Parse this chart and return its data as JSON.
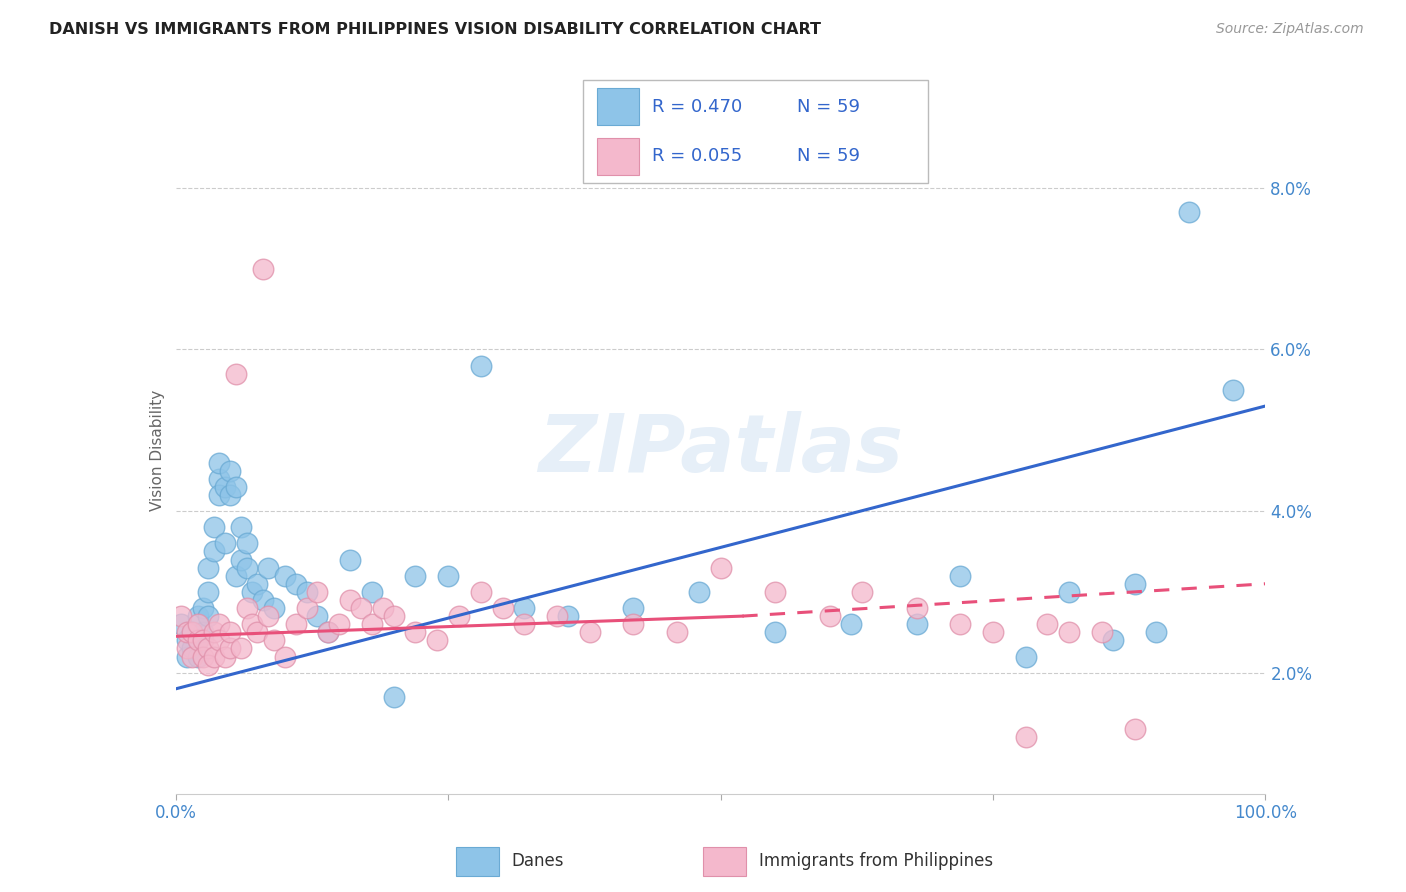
{
  "title": "DANISH VS IMMIGRANTS FROM PHILIPPINES VISION DISABILITY CORRELATION CHART",
  "source": "Source: ZipAtlas.com",
  "ylabel": "Vision Disability",
  "xlim": [
    0,
    1
  ],
  "ylim": [
    0.005,
    0.09
  ],
  "xticks": [
    0,
    0.25,
    0.5,
    0.75,
    1.0
  ],
  "xticklabels": [
    "0.0%",
    "",
    "",
    "",
    "100.0%"
  ],
  "yticks": [
    0.02,
    0.04,
    0.06,
    0.08
  ],
  "yticklabels": [
    "2.0%",
    "4.0%",
    "6.0%",
    "8.0%"
  ],
  "danish_color": "#8ec4e8",
  "danish_edge_color": "#6aaad4",
  "phil_color": "#f4b8cc",
  "phil_edge_color": "#e090aa",
  "blue_line_color": "#3366cc",
  "pink_line_color": "#e8507a",
  "watermark": "ZIPatlas",
  "legend_R_blue": "R = 0.470",
  "legend_N_blue": "N = 59",
  "legend_R_pink": "R = 0.055",
  "legend_N_pink": "N = 59",
  "blue_legend_label": "Danes",
  "pink_legend_label": "Immigrants from Philippines",
  "danes_x": [
    0.005,
    0.01,
    0.01,
    0.015,
    0.015,
    0.02,
    0.02,
    0.02,
    0.025,
    0.025,
    0.03,
    0.03,
    0.03,
    0.035,
    0.035,
    0.04,
    0.04,
    0.04,
    0.045,
    0.045,
    0.05,
    0.05,
    0.055,
    0.055,
    0.06,
    0.06,
    0.065,
    0.065,
    0.07,
    0.075,
    0.08,
    0.085,
    0.09,
    0.1,
    0.11,
    0.12,
    0.13,
    0.14,
    0.16,
    0.18,
    0.2,
    0.22,
    0.25,
    0.28,
    0.32,
    0.36,
    0.42,
    0.48,
    0.55,
    0.62,
    0.68,
    0.72,
    0.78,
    0.82,
    0.86,
    0.88,
    0.9,
    0.93,
    0.97
  ],
  "danes_y": [
    0.026,
    0.024,
    0.022,
    0.025,
    0.023,
    0.027,
    0.024,
    0.022,
    0.028,
    0.025,
    0.033,
    0.03,
    0.027,
    0.038,
    0.035,
    0.044,
    0.046,
    0.042,
    0.043,
    0.036,
    0.045,
    0.042,
    0.043,
    0.032,
    0.038,
    0.034,
    0.036,
    0.033,
    0.03,
    0.031,
    0.029,
    0.033,
    0.028,
    0.032,
    0.031,
    0.03,
    0.027,
    0.025,
    0.034,
    0.03,
    0.017,
    0.032,
    0.032,
    0.058,
    0.028,
    0.027,
    0.028,
    0.03,
    0.025,
    0.026,
    0.026,
    0.032,
    0.022,
    0.03,
    0.024,
    0.031,
    0.025,
    0.077,
    0.055
  ],
  "phil_x": [
    0.005,
    0.01,
    0.01,
    0.015,
    0.015,
    0.02,
    0.02,
    0.025,
    0.025,
    0.03,
    0.03,
    0.035,
    0.035,
    0.04,
    0.04,
    0.045,
    0.05,
    0.05,
    0.055,
    0.06,
    0.065,
    0.07,
    0.075,
    0.08,
    0.085,
    0.09,
    0.1,
    0.11,
    0.12,
    0.13,
    0.14,
    0.15,
    0.16,
    0.17,
    0.18,
    0.19,
    0.2,
    0.22,
    0.24,
    0.26,
    0.28,
    0.3,
    0.32,
    0.35,
    0.38,
    0.42,
    0.46,
    0.5,
    0.55,
    0.6,
    0.63,
    0.68,
    0.72,
    0.75,
    0.78,
    0.8,
    0.82,
    0.85,
    0.88
  ],
  "phil_y": [
    0.027,
    0.023,
    0.025,
    0.025,
    0.022,
    0.024,
    0.026,
    0.024,
    0.022,
    0.023,
    0.021,
    0.025,
    0.022,
    0.026,
    0.024,
    0.022,
    0.023,
    0.025,
    0.057,
    0.023,
    0.028,
    0.026,
    0.025,
    0.07,
    0.027,
    0.024,
    0.022,
    0.026,
    0.028,
    0.03,
    0.025,
    0.026,
    0.029,
    0.028,
    0.026,
    0.028,
    0.027,
    0.025,
    0.024,
    0.027,
    0.03,
    0.028,
    0.026,
    0.027,
    0.025,
    0.026,
    0.025,
    0.033,
    0.03,
    0.027,
    0.03,
    0.028,
    0.026,
    0.025,
    0.012,
    0.026,
    0.025,
    0.025,
    0.013
  ],
  "blue_trend": [
    0.0,
    0.018,
    1.0,
    0.053
  ],
  "pink_solid": [
    0.0,
    0.0245,
    0.52,
    0.027
  ],
  "pink_dashed": [
    0.52,
    0.027,
    1.0,
    0.031
  ]
}
